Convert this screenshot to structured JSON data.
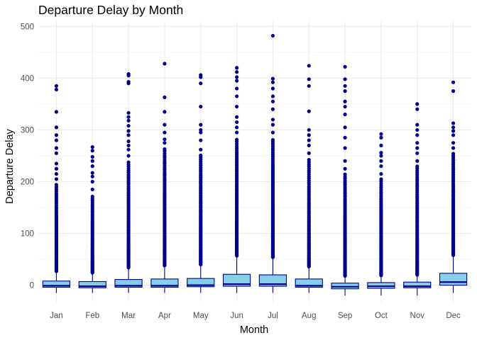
{
  "chart_data": {
    "type": "boxplot",
    "title": "Departure Delay by Month",
    "xlabel": "Month",
    "ylabel": "Departure Delay",
    "ylim": [
      -32,
      510
    ],
    "yticks": [
      0,
      100,
      200,
      300,
      400,
      500
    ],
    "grid": true,
    "colors": {
      "box_fill": "#87ceeb",
      "box_line": "#00008b",
      "outlier": "#00008b",
      "grid": "#ebebeb"
    },
    "categories": [
      "Jan",
      "Feb",
      "Mar",
      "Apr",
      "May",
      "Jun",
      "Jul",
      "Aug",
      "Sep",
      "Oct",
      "Nov",
      "Dec"
    ],
    "boxes": [
      {
        "month": "Jan",
        "whisker_low": -15,
        "q1": -4,
        "median": -1,
        "q3": 8,
        "whisker_high": 25,
        "outliers_dense_to": 195,
        "outliers_sparse": [
          205,
          215,
          225,
          235,
          255,
          265,
          280,
          290,
          305,
          335,
          378,
          385
        ]
      },
      {
        "month": "Feb",
        "whisker_low": -15,
        "q1": -5,
        "median": -2,
        "q3": 7,
        "whisker_high": 22,
        "outliers_dense_to": 175,
        "outliers_sparse": [
          185,
          200,
          210,
          217,
          230,
          240,
          248,
          260,
          267
        ]
      },
      {
        "month": "Mar",
        "whisker_low": -15,
        "q1": -4,
        "median": -1,
        "q3": 11,
        "whisker_high": 32,
        "outliers_dense_to": 240,
        "outliers_sparse": [
          250,
          262,
          270,
          278,
          290,
          298,
          308,
          318,
          325,
          333,
          390,
          393,
          405,
          408
        ]
      },
      {
        "month": "Apr",
        "whisker_low": -15,
        "q1": -4,
        "median": -1,
        "q3": 12,
        "whisker_high": 36,
        "outliers_dense_to": 265,
        "outliers_sparse": [
          275,
          282,
          295,
          310,
          335,
          363,
          428
        ]
      },
      {
        "month": "May",
        "whisker_low": -15,
        "q1": -3,
        "median": 0,
        "q3": 13,
        "whisker_high": 38,
        "outliers_dense_to": 255,
        "outliers_sparse": [
          262,
          280,
          295,
          300,
          310,
          345,
          390,
          402,
          406
        ]
      },
      {
        "month": "Jun",
        "whisker_low": -15,
        "q1": -2,
        "median": 2,
        "q3": 21,
        "whisker_high": 55,
        "outliers_dense_to": 285,
        "outliers_sparse": [
          295,
          305,
          315,
          325,
          345,
          365,
          380,
          395,
          402,
          412,
          420
        ]
      },
      {
        "month": "Jul",
        "whisker_low": -15,
        "q1": -2,
        "median": 2,
        "q3": 20,
        "whisker_high": 52,
        "outliers_dense_to": 285,
        "outliers_sparse": [
          295,
          310,
          320,
          340,
          355,
          365,
          380,
          392,
          399,
          482
        ]
      },
      {
        "month": "Aug",
        "whisker_low": -15,
        "q1": -4,
        "median": -1,
        "q3": 12,
        "whisker_high": 34,
        "outliers_dense_to": 245,
        "outliers_sparse": [
          255,
          270,
          280,
          290,
          300,
          336,
          385,
          398,
          424
        ]
      },
      {
        "month": "Sep",
        "whisker_low": -20,
        "q1": -7,
        "median": -3,
        "q3": 4,
        "whisker_high": 16,
        "outliers_dense_to": 215,
        "outliers_sparse": [
          225,
          240,
          265,
          285,
          305,
          330,
          345,
          355,
          375,
          385,
          398,
          422
        ]
      },
      {
        "month": "Oct",
        "whisker_low": -20,
        "q1": -6,
        "median": -2,
        "q3": 5,
        "whisker_high": 17,
        "outliers_dense_to": 205,
        "outliers_sparse": [
          215,
          230,
          240,
          250,
          256,
          270,
          285,
          292
        ]
      },
      {
        "month": "Nov",
        "whisker_low": -20,
        "q1": -5,
        "median": -2,
        "q3": 6,
        "whisker_high": 18,
        "outliers_dense_to": 230,
        "outliers_sparse": [
          240,
          255,
          265,
          275,
          290,
          300,
          310,
          340,
          350
        ]
      },
      {
        "month": "Dec",
        "whisker_low": -15,
        "q1": 0,
        "median": 6,
        "q3": 23,
        "whisker_high": 56,
        "outliers_dense_to": 255,
        "outliers_sparse": [
          265,
          275,
          290,
          298,
          305,
          313,
          375,
          392
        ]
      }
    ]
  }
}
